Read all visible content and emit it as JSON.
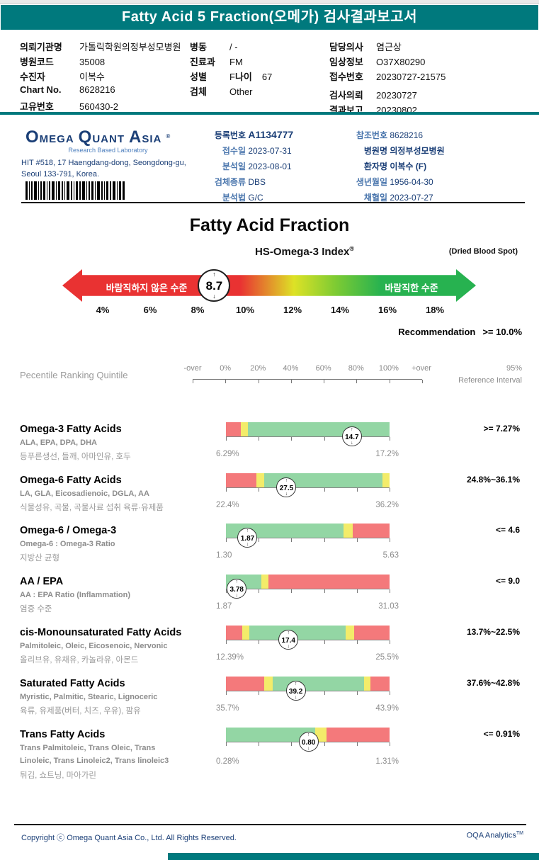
{
  "colors": {
    "teal": "#00797d",
    "navy": "#1b3f77",
    "label_blue": "#4a76ad",
    "red": "#f4797b",
    "yellow": "#f3ec6a",
    "green": "#93d6a4",
    "arrow_red": "#e93232",
    "arrow_green": "#27b250"
  },
  "header": {
    "title": "Fatty Acid 5 Fraction(오메가) 검사결과보고서"
  },
  "patient": {
    "col1": [
      {
        "label": "의뢰기관명",
        "value": "가톨릭학원의정부성모병원"
      },
      {
        "label": "병원코드",
        "value": "35008"
      },
      {
        "label": "수진자",
        "value": "이복수"
      },
      {
        "label": "Chart No.",
        "value": "8628216"
      },
      {
        "label": "고유번호",
        "value": "560430-2"
      }
    ],
    "col2": [
      {
        "label": "병동",
        "value": "/ -"
      },
      {
        "label": "진료과",
        "value": "FM"
      },
      {
        "label": "성별",
        "value": "F"
      },
      {
        "label": "검체",
        "value": "Other"
      }
    ],
    "age_label": "나이",
    "age_value": "67",
    "col3": [
      {
        "label": "담당의사",
        "value": "염근상"
      },
      {
        "label": "임상정보",
        "value": "O37X80290"
      },
      {
        "label": "접수번호",
        "value": "20230727-21575"
      },
      {
        "label": "검사의뢰",
        "value": "20230727"
      },
      {
        "label": "결과보고",
        "value": "20230802"
      }
    ]
  },
  "lab": {
    "logo_words": [
      "OMEGA",
      "QUANT",
      "ASIA"
    ],
    "logo_reg": "®",
    "tagline": "Research Based Laboratory",
    "address1": "HIT #518, 17 Haengdang-dong, Seongdong-gu,",
    "address2": "Seoul 133-791, Korea.",
    "col1": [
      {
        "label": "등록번호",
        "value": "A1134777"
      },
      {
        "label": "접수일",
        "value": "2023-07-31"
      },
      {
        "label": "분석일",
        "value": "2023-08-01"
      },
      {
        "label": "검체종류",
        "value": "DBS"
      },
      {
        "label": "분석법",
        "value": "G/C"
      }
    ],
    "col2": [
      {
        "label": "참조번호",
        "value": "8628216"
      },
      {
        "label": "병원명",
        "value": "의정부성모병원"
      },
      {
        "label": "환자명",
        "value": "이복수 (F)"
      },
      {
        "label": "생년월일",
        "value": "1956-04-30"
      },
      {
        "label": "채혈일",
        "value": "2023-07-27"
      }
    ]
  },
  "section": {
    "title": "Fatty Acid Fraction",
    "index_title": "HS-Omega-3 Index",
    "index_reg": "®",
    "sample_note": "(Dried Blood Spot)",
    "recommendation_label": "Recommendation",
    "recommendation_value": ">= 10.0%"
  },
  "gauge": {
    "value": "8.7",
    "value_num": 8.7,
    "min": 4,
    "max": 18,
    "left_label": "바람직하지 않은 수준",
    "right_label": "바람직한 수준",
    "scale_labels": [
      "4%",
      "6%",
      "8%",
      "10%",
      "12%",
      "14%",
      "16%",
      "18%"
    ]
  },
  "axis": {
    "title": "Pecentile Ranking Quintile",
    "labels": [
      "-over",
      "0%",
      "20%",
      "40%",
      "60%",
      "80%",
      "100%",
      "+over"
    ],
    "right_top": "95%",
    "right_bottom": "Reference Interval"
  },
  "rows": [
    {
      "title": "Omega-3 Fatty Acids",
      "sub": "ALA, EPA, DPA, DHA",
      "sub2": "",
      "desc": "등푸른생선, 들깨, 아마인유, 호두",
      "low": "6.29%",
      "high": "17.2%",
      "ref": ">= 7.27%",
      "value": "14.7",
      "marker_pct": 0.77,
      "segments": [
        {
          "color": "red",
          "from": 0,
          "to": 0.09
        },
        {
          "color": "yellow",
          "from": 0.09,
          "to": 0.135
        },
        {
          "color": "green",
          "from": 0.135,
          "to": 1
        }
      ]
    },
    {
      "title": "Omega-6 Fatty Acids",
      "sub": "LA, GLA, Eicosadienoic, DGLA, AA",
      "sub2": "",
      "desc": "식물성유, 곡물, 곡물사료 섭취 육류·유제품",
      "low": "22.4%",
      "high": "36.2%",
      "ref": "24.8%~36.1%",
      "value": "27.5",
      "marker_pct": 0.37,
      "segments": [
        {
          "color": "red",
          "from": 0,
          "to": 0.185
        },
        {
          "color": "yellow",
          "from": 0.185,
          "to": 0.235
        },
        {
          "color": "green",
          "from": 0.235,
          "to": 0.955
        },
        {
          "color": "yellow",
          "from": 0.955,
          "to": 1
        }
      ]
    },
    {
      "title": "Omega-6 / Omega-3",
      "sub": "Omega-6 : Omega-3 Ratio",
      "sub2": "",
      "desc": "지방산 균형",
      "low": "1.30",
      "high": "5.63",
      "ref": "<= 4.6",
      "value": "1.87",
      "marker_pct": 0.132,
      "segments": [
        {
          "color": "green",
          "from": 0,
          "to": 0.72
        },
        {
          "color": "yellow",
          "from": 0.72,
          "to": 0.775
        },
        {
          "color": "red",
          "from": 0.775,
          "to": 1
        }
      ]
    },
    {
      "title": "AA / EPA",
      "sub": "AA : EPA Ratio (Inflammation)",
      "sub2": "",
      "desc": "염증 수준",
      "low": "1.87",
      "high": "31.03",
      "ref": "<= 9.0",
      "value": "3.78",
      "marker_pct": 0.066,
      "segments": [
        {
          "color": "green",
          "from": 0,
          "to": 0.215
        },
        {
          "color": "yellow",
          "from": 0.215,
          "to": 0.26
        },
        {
          "color": "red",
          "from": 0.26,
          "to": 1
        }
      ]
    },
    {
      "title": "cis-Monounsaturated Fatty Acids",
      "sub": "Palmitoleic, Oleic, Eicosenoic, Nervonic",
      "sub2": "",
      "desc": "올리브유, 유채유, 카놀라유, 아몬드",
      "low": "12.39%",
      "high": "25.5%",
      "ref": "13.7%~22.5%",
      "value": "17.4",
      "marker_pct": 0.382,
      "segments": [
        {
          "color": "red",
          "from": 0,
          "to": 0.1
        },
        {
          "color": "yellow",
          "from": 0.1,
          "to": 0.145
        },
        {
          "color": "green",
          "from": 0.145,
          "to": 0.73
        },
        {
          "color": "yellow",
          "from": 0.73,
          "to": 0.785
        },
        {
          "color": "red",
          "from": 0.785,
          "to": 1
        }
      ]
    },
    {
      "title": "Saturated Fatty Acids",
      "sub": "Myristic, Palmitic, Stearic, Lignoceric",
      "sub2": "",
      "desc": "육류, 유제품(버터, 치즈, 우유), 팜유",
      "low": "35.7%",
      "high": "43.9%",
      "ref": "37.6%~42.8%",
      "value": "39.2",
      "marker_pct": 0.427,
      "segments": [
        {
          "color": "red",
          "from": 0,
          "to": 0.235
        },
        {
          "color": "yellow",
          "from": 0.235,
          "to": 0.285
        },
        {
          "color": "green",
          "from": 0.285,
          "to": 0.845
        },
        {
          "color": "yellow",
          "from": 0.845,
          "to": 0.885
        },
        {
          "color": "red",
          "from": 0.885,
          "to": 1
        }
      ]
    },
    {
      "title": "Trans Fatty Acids",
      "sub": "Trans Palmitoleic, Trans Oleic, Trans",
      "sub2": "Linoleic, Trans Linoleic2, Trans linoleic3",
      "desc": "튀김, 쇼트닝, 마아가린",
      "low": "0.28%",
      "high": "1.31%",
      "ref": "<= 0.91%",
      "value": "0.80",
      "marker_pct": 0.505,
      "segments": [
        {
          "color": "green",
          "from": 0,
          "to": 0.545
        },
        {
          "color": "yellow",
          "from": 0.545,
          "to": 0.615
        },
        {
          "color": "red",
          "from": 0.615,
          "to": 1
        }
      ]
    }
  ],
  "footer": {
    "copyright": "Copyright ⓒ Omega Quant Asia Co., Ltd.  All Rights Reserved.",
    "brand": "OQA Analytics",
    "brand_tm": "TM"
  },
  "chart_data": [
    {
      "type": "gauge",
      "title": "HS-Omega-3 Index (Dried Blood Spot)",
      "value": 8.7,
      "axis_ticks": [
        4,
        6,
        8,
        10,
        12,
        14,
        16,
        18
      ],
      "axis_unit": "%",
      "zones": [
        {
          "label": "바람직하지 않은 수준",
          "color": "red",
          "approx_range": [
            4,
            11
          ]
        },
        {
          "label": "transition",
          "color": "yellow",
          "approx_range": [
            11,
            12.5
          ]
        },
        {
          "label": "바람직한 수준",
          "color": "green",
          "approx_range": [
            12.5,
            18
          ]
        }
      ],
      "recommendation": ">= 10.0%"
    },
    {
      "type": "bullet",
      "title": "Pecentile Ranking Quintile",
      "x_axis": [
        "-over",
        "0%",
        "20%",
        "40%",
        "60%",
        "80%",
        "100%",
        "+over"
      ],
      "legend_note": "95% Reference Interval",
      "series": [
        {
          "name": "Omega-3 Fatty Acids",
          "value": 14.7,
          "scale_low": 6.29,
          "scale_high": 17.2,
          "reference": ">= 7.27%"
        },
        {
          "name": "Omega-6 Fatty Acids",
          "value": 27.5,
          "scale_low": 22.4,
          "scale_high": 36.2,
          "reference": "24.8%~36.1%"
        },
        {
          "name": "Omega-6 / Omega-3",
          "value": 1.87,
          "scale_low": 1.3,
          "scale_high": 5.63,
          "reference": "<= 4.6"
        },
        {
          "name": "AA / EPA",
          "value": 3.78,
          "scale_low": 1.87,
          "scale_high": 31.03,
          "reference": "<= 9.0"
        },
        {
          "name": "cis-Monounsaturated Fatty Acids",
          "value": 17.4,
          "scale_low": 12.39,
          "scale_high": 25.5,
          "reference": "13.7%~22.5%"
        },
        {
          "name": "Saturated Fatty Acids",
          "value": 39.2,
          "scale_low": 35.7,
          "scale_high": 43.9,
          "reference": "37.6%~42.8%"
        },
        {
          "name": "Trans Fatty Acids",
          "value": 0.8,
          "scale_low": 0.28,
          "scale_high": 1.31,
          "reference": "<= 0.91%"
        }
      ]
    }
  ]
}
